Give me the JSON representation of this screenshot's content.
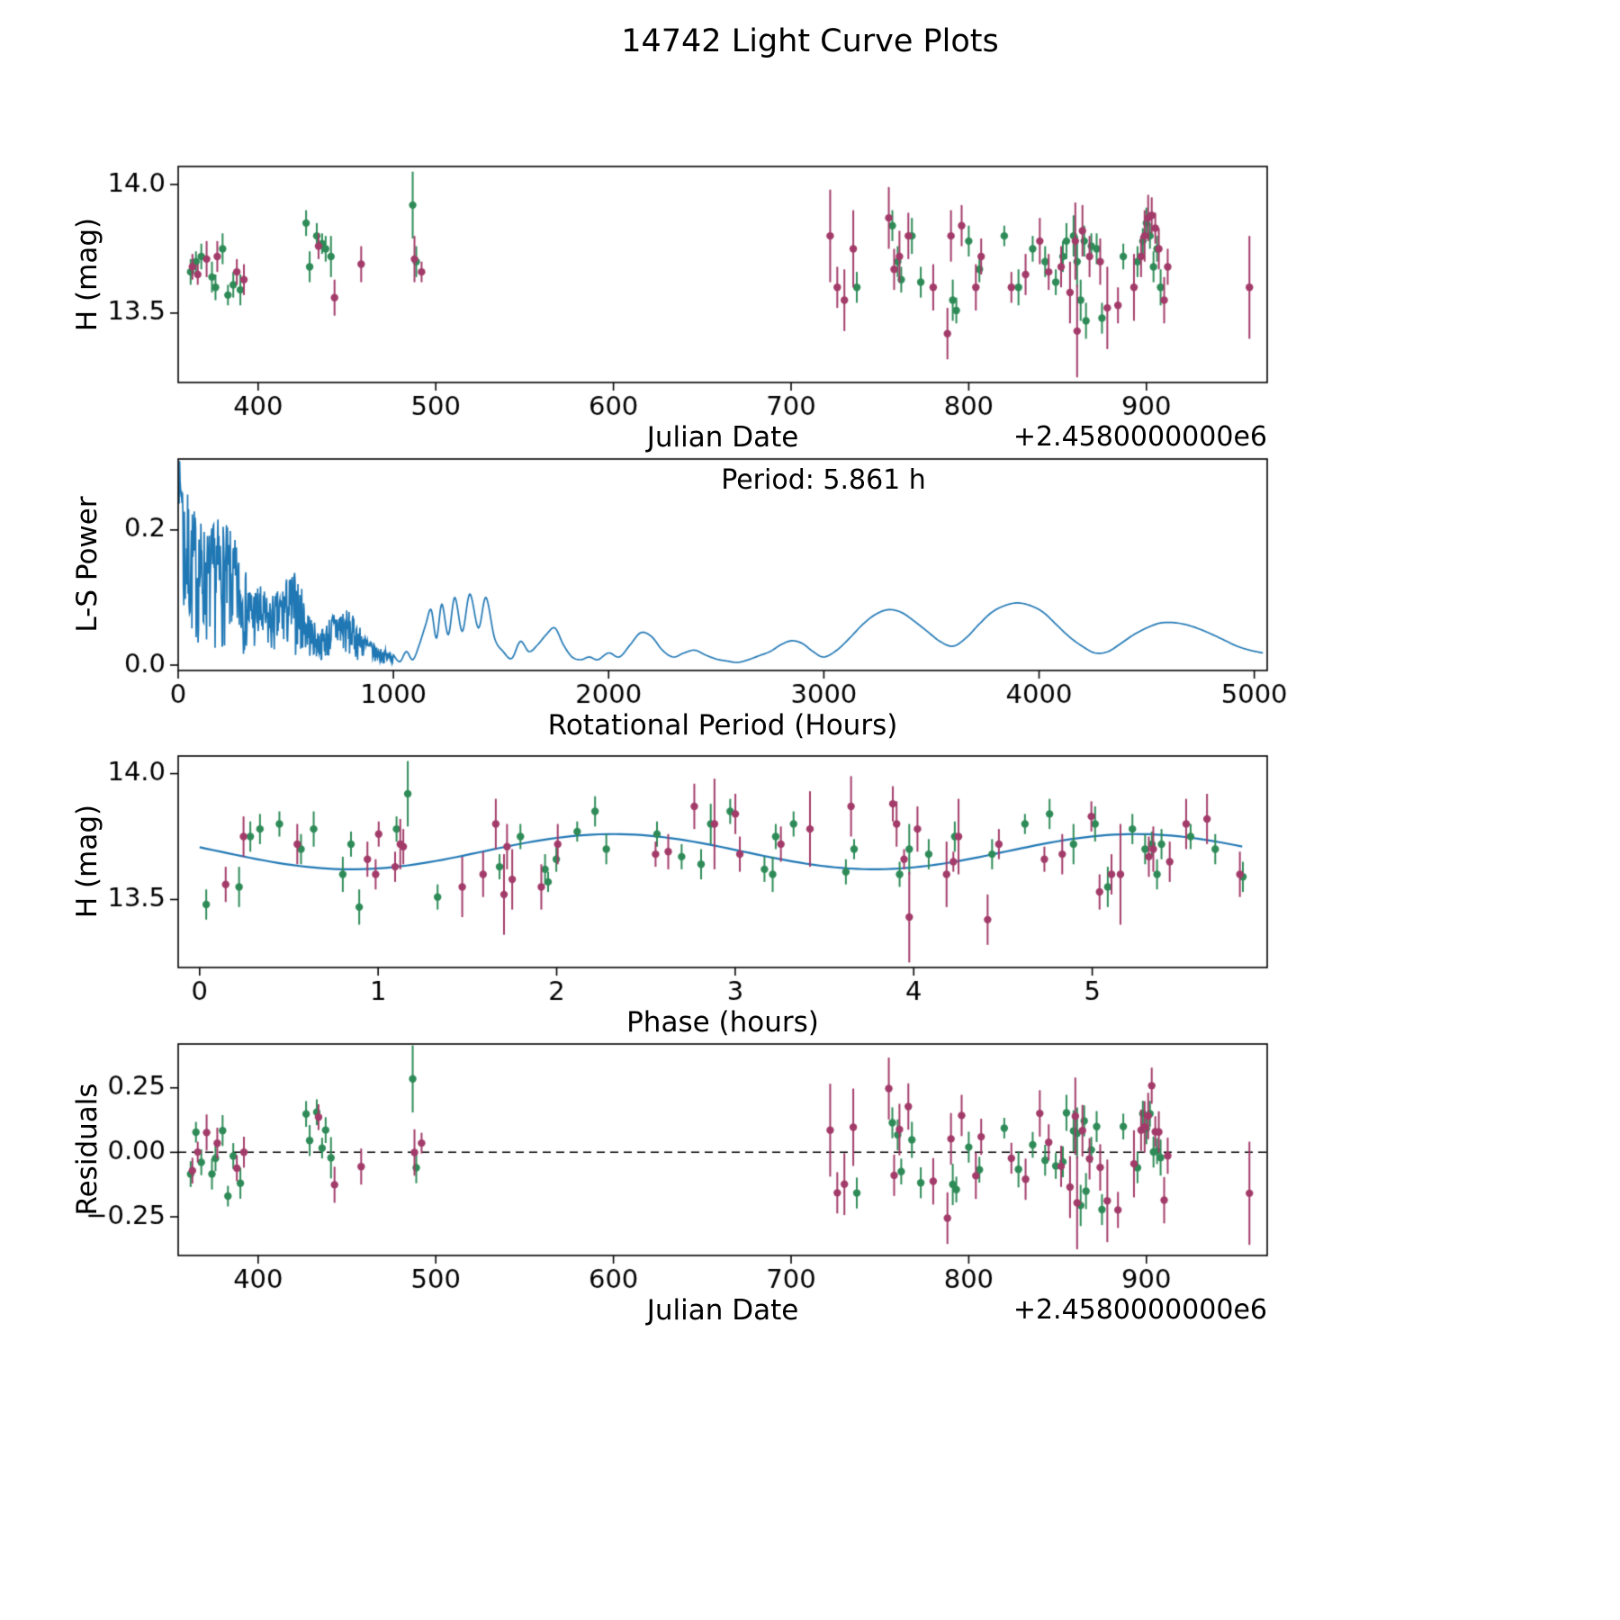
{
  "title": "14742 Light Curve Plots",
  "colors": {
    "green": "#2e8b57",
    "magenta": "#a23b69",
    "line_blue": "#1f77b4",
    "axis": "#000000",
    "background": "#ffffff"
  },
  "chart_data": [
    {
      "id": "lightcurve",
      "type": "scatter",
      "xlabel": "Julian Date",
      "ylabel": "H (mag)",
      "offset_text": "+2.4580000000e6",
      "xlim": [
        355,
        968
      ],
      "ylim": [
        13.23,
        14.07
      ],
      "xticks": {
        "values": [
          400,
          500,
          600,
          700,
          800,
          900
        ],
        "labels": [
          "400",
          "500",
          "600",
          "700",
          "800",
          "900"
        ]
      },
      "yticks": {
        "values": [
          14.0,
          13.5
        ],
        "labels": [
          "14.0",
          "13.5"
        ]
      },
      "series": [
        {
          "name": "dataset-green",
          "color_key": "green",
          "points": [
            [
              362,
              13.66,
              0.05
            ],
            [
              365,
              13.7,
              0.04
            ],
            [
              368,
              13.72,
              0.05
            ],
            [
              374,
              13.64,
              0.06
            ],
            [
              376,
              13.6,
              0.05
            ],
            [
              380,
              13.75,
              0.06
            ],
            [
              383,
              13.57,
              0.04
            ],
            [
              386,
              13.61,
              0.05
            ],
            [
              390,
              13.59,
              0.06
            ],
            [
              427,
              13.85,
              0.05
            ],
            [
              429,
              13.68,
              0.06
            ],
            [
              433,
              13.8,
              0.05
            ],
            [
              436,
              13.77,
              0.04
            ],
            [
              438,
              13.75,
              0.05
            ],
            [
              441,
              13.72,
              0.08
            ],
            [
              487,
              13.92,
              0.13
            ],
            [
              489,
              13.7,
              0.06
            ],
            [
              737,
              13.6,
              0.06
            ],
            [
              757,
              13.84,
              0.06
            ],
            [
              760,
              13.7,
              0.06
            ],
            [
              762,
              13.63,
              0.05
            ],
            [
              768,
              13.8,
              0.07
            ],
            [
              773,
              13.62,
              0.06
            ],
            [
              791,
              13.55,
              0.08
            ],
            [
              793,
              13.51,
              0.05
            ],
            [
              800,
              13.78,
              0.06
            ],
            [
              806,
              13.67,
              0.05
            ],
            [
              820,
              13.8,
              0.04
            ],
            [
              828,
              13.6,
              0.07
            ],
            [
              836,
              13.75,
              0.05
            ],
            [
              843,
              13.7,
              0.06
            ],
            [
              849,
              13.62,
              0.05
            ],
            [
              853,
              13.72,
              0.06
            ],
            [
              855,
              13.78,
              0.07
            ],
            [
              859,
              13.8,
              0.08
            ],
            [
              861,
              13.7,
              0.1
            ],
            [
              863,
              13.55,
              0.08
            ],
            [
              865,
              13.78,
              0.06
            ],
            [
              866,
              13.47,
              0.07
            ],
            [
              869,
              13.76,
              0.05
            ],
            [
              872,
              13.75,
              0.06
            ],
            [
              875,
              13.48,
              0.06
            ],
            [
              887,
              13.72,
              0.05
            ],
            [
              895,
              13.7,
              0.06
            ],
            [
              898,
              13.78,
              0.05
            ],
            [
              900,
              13.85,
              0.06
            ],
            [
              902,
              13.8,
              0.05
            ],
            [
              904,
              13.68,
              0.06
            ],
            [
              906,
              13.75,
              0.05
            ],
            [
              908,
              13.6,
              0.07
            ]
          ]
        },
        {
          "name": "dataset-magenta",
          "color_key": "magenta",
          "points": [
            [
              363,
              13.68,
              0.05
            ],
            [
              366,
              13.65,
              0.04
            ],
            [
              371,
              13.71,
              0.07
            ],
            [
              377,
              13.72,
              0.06
            ],
            [
              388,
              13.66,
              0.05
            ],
            [
              392,
              13.63,
              0.06
            ],
            [
              434,
              13.76,
              0.05
            ],
            [
              443,
              13.56,
              0.07
            ],
            [
              458,
              13.69,
              0.07
            ],
            [
              488,
              13.71,
              0.09
            ],
            [
              492,
              13.66,
              0.04
            ],
            [
              722,
              13.8,
              0.18
            ],
            [
              726,
              13.6,
              0.08
            ],
            [
              730,
              13.55,
              0.12
            ],
            [
              735,
              13.75,
              0.15
            ],
            [
              755,
              13.87,
              0.12
            ],
            [
              758,
              13.67,
              0.08
            ],
            [
              761,
              13.72,
              0.1
            ],
            [
              766,
              13.8,
              0.09
            ],
            [
              780,
              13.6,
              0.09
            ],
            [
              788,
              13.42,
              0.1
            ],
            [
              790,
              13.8,
              0.1
            ],
            [
              796,
              13.84,
              0.08
            ],
            [
              804,
              13.6,
              0.09
            ],
            [
              807,
              13.72,
              0.07
            ],
            [
              824,
              13.6,
              0.06
            ],
            [
              832,
              13.65,
              0.08
            ],
            [
              840,
              13.78,
              0.09
            ],
            [
              845,
              13.66,
              0.07
            ],
            [
              852,
              13.68,
              0.08
            ],
            [
              857,
              13.58,
              0.12
            ],
            [
              860,
              13.78,
              0.15
            ],
            [
              861,
              13.43,
              0.18
            ],
            [
              864,
              13.82,
              0.1
            ],
            [
              868,
              13.72,
              0.08
            ],
            [
              874,
              13.7,
              0.09
            ],
            [
              878,
              13.52,
              0.16
            ],
            [
              884,
              13.53,
              0.07
            ],
            [
              893,
              13.6,
              0.13
            ],
            [
              897,
              13.72,
              0.08
            ],
            [
              899,
              13.8,
              0.1
            ],
            [
              901,
              13.87,
              0.09
            ],
            [
              903,
              13.88,
              0.07
            ],
            [
              905,
              13.83,
              0.06
            ],
            [
              907,
              13.75,
              0.08
            ],
            [
              910,
              13.55,
              0.09
            ],
            [
              912,
              13.68,
              0.07
            ],
            [
              958,
              13.6,
              0.2
            ]
          ]
        }
      ]
    },
    {
      "id": "periodogram",
      "type": "line",
      "xlabel": "Rotational Period (Hours)",
      "ylabel": "L-S Power",
      "annotation": "Period: 5.861 h",
      "best_period_hours": 5.861,
      "xlim": [
        0,
        5060
      ],
      "ylim": [
        -0.008,
        0.305
      ],
      "xticks": {
        "values": [
          0,
          1000,
          2000,
          3000,
          4000,
          5000
        ],
        "labels": [
          "0",
          "1000",
          "2000",
          "3000",
          "4000",
          "5000"
        ]
      },
      "yticks": {
        "values": [
          0.0,
          0.2
        ],
        "labels": [
          "0.0",
          "0.2"
        ]
      },
      "noise": {
        "seed": 7,
        "x_start": 2,
        "x_end": 1000,
        "step": 2.2,
        "envelope": [
          [
            0,
            0.3
          ],
          [
            20,
            0.28
          ],
          [
            60,
            0.24
          ],
          [
            100,
            0.22
          ],
          [
            140,
            0.2
          ],
          [
            180,
            0.22
          ],
          [
            220,
            0.21
          ],
          [
            260,
            0.19
          ],
          [
            300,
            0.15
          ],
          [
            340,
            0.12
          ],
          [
            380,
            0.12
          ],
          [
            420,
            0.1
          ],
          [
            460,
            0.11
          ],
          [
            500,
            0.13
          ],
          [
            540,
            0.14
          ],
          [
            580,
            0.11
          ],
          [
            620,
            0.07
          ],
          [
            660,
            0.05
          ],
          [
            700,
            0.07
          ],
          [
            740,
            0.09
          ],
          [
            780,
            0.085
          ],
          [
            820,
            0.07
          ],
          [
            860,
            0.05
          ],
          [
            900,
            0.035
          ],
          [
            940,
            0.025
          ],
          [
            980,
            0.02
          ],
          [
            1000,
            0.015
          ]
        ]
      },
      "smooth": [
        [
          1000,
          0.015
        ],
        [
          1030,
          0.005
        ],
        [
          1060,
          0.02
        ],
        [
          1090,
          0.008
        ],
        [
          1120,
          0.03
        ],
        [
          1150,
          0.06
        ],
        [
          1175,
          0.082
        ],
        [
          1200,
          0.04
        ],
        [
          1225,
          0.09
        ],
        [
          1255,
          0.045
        ],
        [
          1285,
          0.1
        ],
        [
          1320,
          0.05
        ],
        [
          1355,
          0.105
        ],
        [
          1395,
          0.055
        ],
        [
          1430,
          0.1
        ],
        [
          1470,
          0.04
        ],
        [
          1510,
          0.02
        ],
        [
          1550,
          0.01
        ],
        [
          1590,
          0.035
        ],
        [
          1630,
          0.02
        ],
        [
          1670,
          0.03
        ],
        [
          1710,
          0.045
        ],
        [
          1750,
          0.055
        ],
        [
          1790,
          0.03
        ],
        [
          1830,
          0.012
        ],
        [
          1870,
          0.008
        ],
        [
          1910,
          0.012
        ],
        [
          1950,
          0.008
        ],
        [
          2000,
          0.018
        ],
        [
          2050,
          0.012
        ],
        [
          2100,
          0.03
        ],
        [
          2150,
          0.048
        ],
        [
          2200,
          0.042
        ],
        [
          2250,
          0.022
        ],
        [
          2300,
          0.012
        ],
        [
          2350,
          0.018
        ],
        [
          2400,
          0.022
        ],
        [
          2450,
          0.015
        ],
        [
          2500,
          0.009
        ],
        [
          2550,
          0.006
        ],
        [
          2600,
          0.004
        ],
        [
          2650,
          0.008
        ],
        [
          2700,
          0.014
        ],
        [
          2750,
          0.02
        ],
        [
          2800,
          0.03
        ],
        [
          2850,
          0.036
        ],
        [
          2900,
          0.032
        ],
        [
          2950,
          0.02
        ],
        [
          3000,
          0.012
        ],
        [
          3060,
          0.022
        ],
        [
          3120,
          0.04
        ],
        [
          3180,
          0.06
        ],
        [
          3240,
          0.075
        ],
        [
          3300,
          0.082
        ],
        [
          3360,
          0.078
        ],
        [
          3420,
          0.065
        ],
        [
          3480,
          0.05
        ],
        [
          3540,
          0.035
        ],
        [
          3600,
          0.028
        ],
        [
          3660,
          0.04
        ],
        [
          3720,
          0.06
        ],
        [
          3780,
          0.078
        ],
        [
          3840,
          0.088
        ],
        [
          3900,
          0.092
        ],
        [
          3960,
          0.088
        ],
        [
          4020,
          0.078
        ],
        [
          4080,
          0.06
        ],
        [
          4140,
          0.042
        ],
        [
          4200,
          0.028
        ],
        [
          4260,
          0.018
        ],
        [
          4320,
          0.02
        ],
        [
          4380,
          0.032
        ],
        [
          4440,
          0.045
        ],
        [
          4500,
          0.055
        ],
        [
          4560,
          0.062
        ],
        [
          4620,
          0.063
        ],
        [
          4680,
          0.06
        ],
        [
          4740,
          0.054
        ],
        [
          4800,
          0.046
        ],
        [
          4860,
          0.037
        ],
        [
          4920,
          0.028
        ],
        [
          4980,
          0.022
        ],
        [
          5040,
          0.018
        ]
      ]
    },
    {
      "id": "phase",
      "type": "scatter+line",
      "xlabel": "Phase (hours)",
      "ylabel": "H (mag)",
      "xlim": [
        -0.12,
        5.98
      ],
      "ylim": [
        13.23,
        14.07
      ],
      "xticks": {
        "values": [
          0,
          1,
          2,
          3,
          4,
          5
        ],
        "labels": [
          "0",
          "1",
          "2",
          "3",
          "4",
          "5"
        ]
      },
      "yticks": {
        "values": [
          14.0,
          13.5
        ],
        "labels": [
          "14.0",
          "13.5"
        ]
      },
      "series_from": 0,
      "fold_period_hours": 5.861,
      "model": {
        "mean": 13.69,
        "amplitude": 0.07,
        "period_hours": 2.9305,
        "min_phase": 0.85
      }
    },
    {
      "id": "residuals",
      "type": "scatter",
      "xlabel": "Julian Date",
      "ylabel": "Residuals",
      "offset_text": "+2.4580000000e6",
      "xlim": [
        355,
        968
      ],
      "ylim": [
        -0.4,
        0.42
      ],
      "xticks": {
        "values": [
          400,
          500,
          600,
          700,
          800,
          900
        ],
        "labels": [
          "400",
          "500",
          "600",
          "700",
          "800",
          "900"
        ]
      },
      "yticks": {
        "values": [
          -0.25,
          0.0,
          0.25
        ],
        "labels": [
          "−0.25",
          "0.00",
          "0.25"
        ]
      },
      "series_from": 0,
      "model_from": 2,
      "zero_line": true
    }
  ]
}
